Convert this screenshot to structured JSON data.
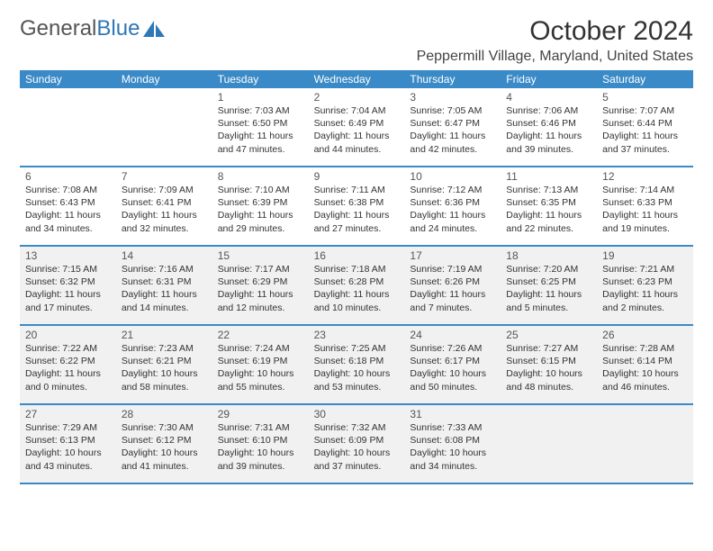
{
  "logo": {
    "text1": "General",
    "text2": "Blue"
  },
  "title": "October 2024",
  "location": "Peppermill Village, Maryland, United States",
  "colors": {
    "header_bg": "#3a8ac8",
    "header_text": "#ffffff",
    "border": "#3a8ac8",
    "shaded_bg": "#f1f1f1",
    "body_text": "#333333",
    "logo_gray": "#555555",
    "logo_blue": "#2e77b8"
  },
  "weekdays": [
    "Sunday",
    "Monday",
    "Tuesday",
    "Wednesday",
    "Thursday",
    "Friday",
    "Saturday"
  ],
  "weeks": [
    {
      "shaded": false,
      "days": [
        {
          "num": "",
          "lines": []
        },
        {
          "num": "",
          "lines": []
        },
        {
          "num": "1",
          "lines": [
            "Sunrise: 7:03 AM",
            "Sunset: 6:50 PM",
            "Daylight: 11 hours",
            "and 47 minutes."
          ]
        },
        {
          "num": "2",
          "lines": [
            "Sunrise: 7:04 AM",
            "Sunset: 6:49 PM",
            "Daylight: 11 hours",
            "and 44 minutes."
          ]
        },
        {
          "num": "3",
          "lines": [
            "Sunrise: 7:05 AM",
            "Sunset: 6:47 PM",
            "Daylight: 11 hours",
            "and 42 minutes."
          ]
        },
        {
          "num": "4",
          "lines": [
            "Sunrise: 7:06 AM",
            "Sunset: 6:46 PM",
            "Daylight: 11 hours",
            "and 39 minutes."
          ]
        },
        {
          "num": "5",
          "lines": [
            "Sunrise: 7:07 AM",
            "Sunset: 6:44 PM",
            "Daylight: 11 hours",
            "and 37 minutes."
          ]
        }
      ]
    },
    {
      "shaded": false,
      "days": [
        {
          "num": "6",
          "lines": [
            "Sunrise: 7:08 AM",
            "Sunset: 6:43 PM",
            "Daylight: 11 hours",
            "and 34 minutes."
          ]
        },
        {
          "num": "7",
          "lines": [
            "Sunrise: 7:09 AM",
            "Sunset: 6:41 PM",
            "Daylight: 11 hours",
            "and 32 minutes."
          ]
        },
        {
          "num": "8",
          "lines": [
            "Sunrise: 7:10 AM",
            "Sunset: 6:39 PM",
            "Daylight: 11 hours",
            "and 29 minutes."
          ]
        },
        {
          "num": "9",
          "lines": [
            "Sunrise: 7:11 AM",
            "Sunset: 6:38 PM",
            "Daylight: 11 hours",
            "and 27 minutes."
          ]
        },
        {
          "num": "10",
          "lines": [
            "Sunrise: 7:12 AM",
            "Sunset: 6:36 PM",
            "Daylight: 11 hours",
            "and 24 minutes."
          ]
        },
        {
          "num": "11",
          "lines": [
            "Sunrise: 7:13 AM",
            "Sunset: 6:35 PM",
            "Daylight: 11 hours",
            "and 22 minutes."
          ]
        },
        {
          "num": "12",
          "lines": [
            "Sunrise: 7:14 AM",
            "Sunset: 6:33 PM",
            "Daylight: 11 hours",
            "and 19 minutes."
          ]
        }
      ]
    },
    {
      "shaded": true,
      "days": [
        {
          "num": "13",
          "lines": [
            "Sunrise: 7:15 AM",
            "Sunset: 6:32 PM",
            "Daylight: 11 hours",
            "and 17 minutes."
          ]
        },
        {
          "num": "14",
          "lines": [
            "Sunrise: 7:16 AM",
            "Sunset: 6:31 PM",
            "Daylight: 11 hours",
            "and 14 minutes."
          ]
        },
        {
          "num": "15",
          "lines": [
            "Sunrise: 7:17 AM",
            "Sunset: 6:29 PM",
            "Daylight: 11 hours",
            "and 12 minutes."
          ]
        },
        {
          "num": "16",
          "lines": [
            "Sunrise: 7:18 AM",
            "Sunset: 6:28 PM",
            "Daylight: 11 hours",
            "and 10 minutes."
          ]
        },
        {
          "num": "17",
          "lines": [
            "Sunrise: 7:19 AM",
            "Sunset: 6:26 PM",
            "Daylight: 11 hours",
            "and 7 minutes."
          ]
        },
        {
          "num": "18",
          "lines": [
            "Sunrise: 7:20 AM",
            "Sunset: 6:25 PM",
            "Daylight: 11 hours",
            "and 5 minutes."
          ]
        },
        {
          "num": "19",
          "lines": [
            "Sunrise: 7:21 AM",
            "Sunset: 6:23 PM",
            "Daylight: 11 hours",
            "and 2 minutes."
          ]
        }
      ]
    },
    {
      "shaded": true,
      "days": [
        {
          "num": "20",
          "lines": [
            "Sunrise: 7:22 AM",
            "Sunset: 6:22 PM",
            "Daylight: 11 hours",
            "and 0 minutes."
          ]
        },
        {
          "num": "21",
          "lines": [
            "Sunrise: 7:23 AM",
            "Sunset: 6:21 PM",
            "Daylight: 10 hours",
            "and 58 minutes."
          ]
        },
        {
          "num": "22",
          "lines": [
            "Sunrise: 7:24 AM",
            "Sunset: 6:19 PM",
            "Daylight: 10 hours",
            "and 55 minutes."
          ]
        },
        {
          "num": "23",
          "lines": [
            "Sunrise: 7:25 AM",
            "Sunset: 6:18 PM",
            "Daylight: 10 hours",
            "and 53 minutes."
          ]
        },
        {
          "num": "24",
          "lines": [
            "Sunrise: 7:26 AM",
            "Sunset: 6:17 PM",
            "Daylight: 10 hours",
            "and 50 minutes."
          ]
        },
        {
          "num": "25",
          "lines": [
            "Sunrise: 7:27 AM",
            "Sunset: 6:15 PM",
            "Daylight: 10 hours",
            "and 48 minutes."
          ]
        },
        {
          "num": "26",
          "lines": [
            "Sunrise: 7:28 AM",
            "Sunset: 6:14 PM",
            "Daylight: 10 hours",
            "and 46 minutes."
          ]
        }
      ]
    },
    {
      "shaded": true,
      "days": [
        {
          "num": "27",
          "lines": [
            "Sunrise: 7:29 AM",
            "Sunset: 6:13 PM",
            "Daylight: 10 hours",
            "and 43 minutes."
          ]
        },
        {
          "num": "28",
          "lines": [
            "Sunrise: 7:30 AM",
            "Sunset: 6:12 PM",
            "Daylight: 10 hours",
            "and 41 minutes."
          ]
        },
        {
          "num": "29",
          "lines": [
            "Sunrise: 7:31 AM",
            "Sunset: 6:10 PM",
            "Daylight: 10 hours",
            "and 39 minutes."
          ]
        },
        {
          "num": "30",
          "lines": [
            "Sunrise: 7:32 AM",
            "Sunset: 6:09 PM",
            "Daylight: 10 hours",
            "and 37 minutes."
          ]
        },
        {
          "num": "31",
          "lines": [
            "Sunrise: 7:33 AM",
            "Sunset: 6:08 PM",
            "Daylight: 10 hours",
            "and 34 minutes."
          ]
        },
        {
          "num": "",
          "lines": []
        },
        {
          "num": "",
          "lines": []
        }
      ]
    }
  ]
}
